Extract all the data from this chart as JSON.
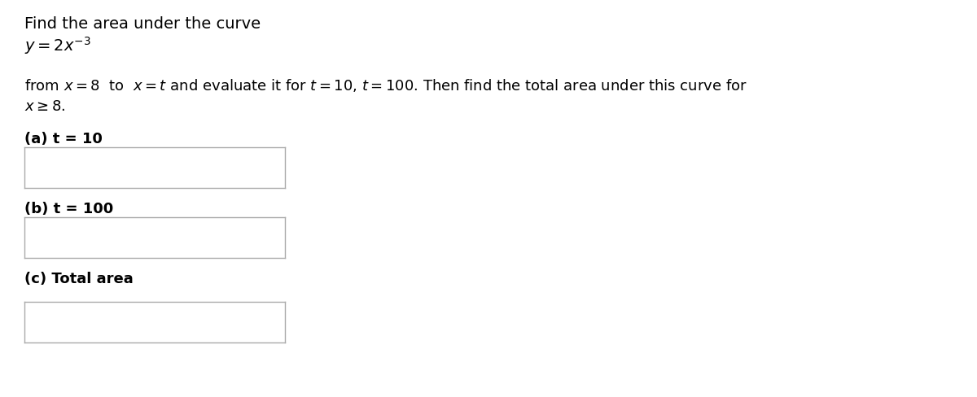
{
  "bg_color": "#ffffff",
  "title_line1": "Find the area under the curve",
  "title_line2": "$y = 2x^{-3}$",
  "desc_line1": "from $x = 8$  to  $x = t$ and evaluate it for $t = 10$, $t = 100$. Then find the total area under this curve for",
  "desc_line2": "$x \\geq 8$.",
  "part_a_label": "(a) t = 10",
  "part_b_label": "(b) t = 100",
  "part_c_label": "(c) Total area",
  "box_edge_color": "#aaaaaa",
  "text_color": "#000000",
  "bg_color_box": "#ffffff",
  "font_size_title": 14,
  "font_size_math": 14,
  "font_size_desc": 13,
  "font_size_parts": 13
}
